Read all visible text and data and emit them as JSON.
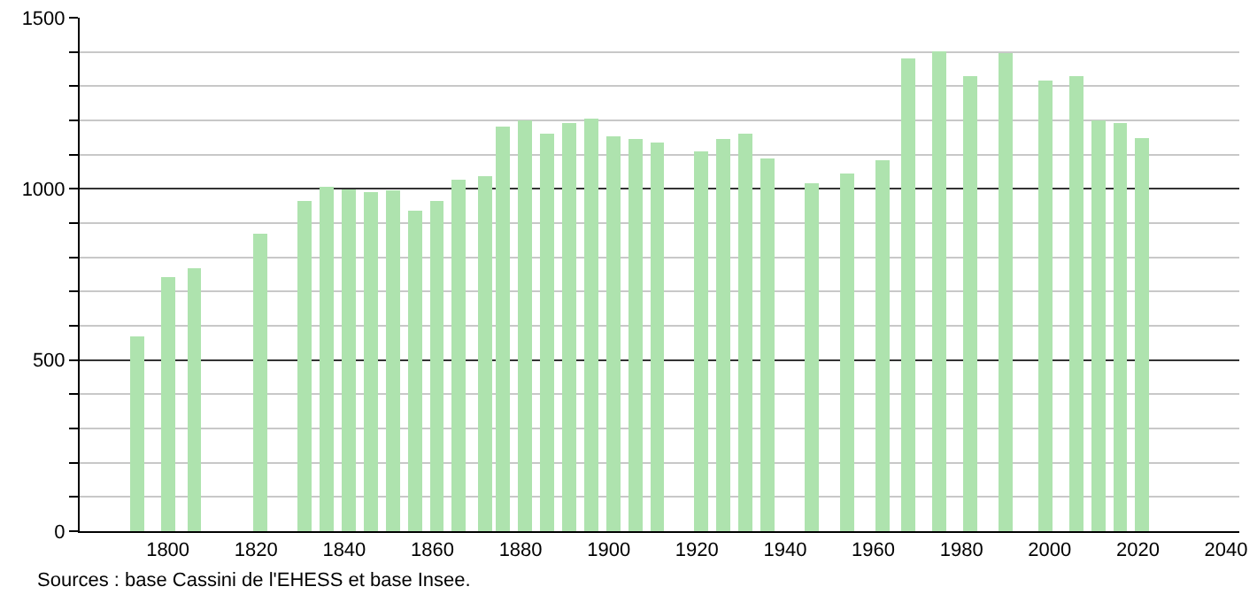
{
  "chart_data": {
    "type": "bar",
    "x": [
      1793,
      1800,
      1806,
      1821,
      1831,
      1836,
      1841,
      1846,
      1851,
      1856,
      1861,
      1866,
      1872,
      1876,
      1881,
      1886,
      1891,
      1896,
      1901,
      1906,
      1911,
      1921,
      1926,
      1931,
      1936,
      1946,
      1954,
      1962,
      1968,
      1975,
      1982,
      1990,
      1999,
      2006,
      2011,
      2016,
      2021
    ],
    "values": [
      570,
      741,
      768,
      869,
      964,
      1005,
      998,
      990,
      997,
      936,
      964,
      1026,
      1036,
      1183,
      1200,
      1162,
      1192,
      1204,
      1154,
      1145,
      1135,
      1109,
      1145,
      1162,
      1088,
      1016,
      1045,
      1083,
      1382,
      1402,
      1330,
      1397,
      1316,
      1330,
      1199,
      1192,
      1149
    ],
    "color": "#aee3ae",
    "xlim": [
      1780,
      2043
    ],
    "xticks": [
      1800,
      1820,
      1840,
      1860,
      1880,
      1900,
      1920,
      1940,
      1960,
      1980,
      2000,
      2020,
      2040
    ],
    "ylim": [
      0,
      1500
    ],
    "yticks": [
      0,
      {
        "value": 100,
        "label": null
      },
      {
        "value": 200,
        "label": null
      },
      {
        "value": 300,
        "label": null
      },
      {
        "value": 400,
        "label": null
      },
      500,
      {
        "value": 600,
        "label": null
      },
      {
        "value": 700,
        "label": null
      },
      {
        "value": 800,
        "label": null
      },
      {
        "value": 900,
        "label": null
      },
      1000,
      {
        "value": 1100,
        "label": null
      },
      {
        "value": 1200,
        "label": null
      },
      {
        "value": 1300,
        "label": null
      },
      {
        "value": 1400,
        "label": null
      },
      1500
    ],
    "grid": "y",
    "legend": false,
    "annotations": [
      "Sources : base Cassini de l'EHESS et base Insee."
    ]
  }
}
